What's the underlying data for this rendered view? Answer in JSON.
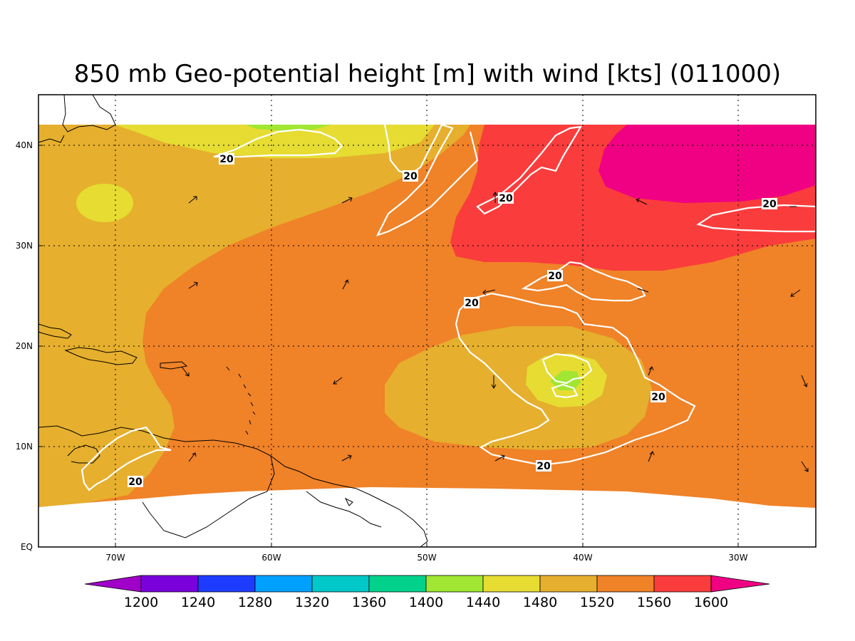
{
  "title": "850 mb Geo-potential height [m] with wind [kts] (011000)",
  "colors": {
    "c1200": "#a000c8",
    "c1240": "#7a00dc",
    "c1280": "#1e3cff",
    "c1320": "#00a0ff",
    "c1360": "#00c8c8",
    "c1400": "#00d28c",
    "c1440": "#a0e632",
    "c1480": "#e6dc32",
    "c1520": "#e6af2d",
    "c1560": "#f08228",
    "c1600": "#fa3c3c",
    "c1640": "#f00082"
  },
  "axes": {
    "x_ticks": [
      "70W",
      "60W",
      "50W",
      "40W",
      "30W"
    ],
    "y_ticks": [
      "EQ",
      "10N",
      "20N",
      "30N",
      "40N"
    ],
    "x_range_deg": [
      -75,
      -25
    ],
    "y_range_deg": [
      0,
      45
    ]
  },
  "colorbar": {
    "labels": [
      "1200",
      "1240",
      "1280",
      "1320",
      "1360",
      "1400",
      "1440",
      "1480",
      "1520",
      "1560",
      "1600"
    ]
  },
  "contour_label": "20",
  "chart_data": {
    "type": "heatmap",
    "title": "850 mb Geo-potential height [m] with wind [kts] (011000)",
    "x_ticks": [
      "70W",
      "60W",
      "50W",
      "40W",
      "30W"
    ],
    "y_ticks": [
      "EQ",
      "10N",
      "20N",
      "30N",
      "40N"
    ],
    "levels": [
      1200,
      1240,
      1280,
      1320,
      1360,
      1400,
      1440,
      1480,
      1520,
      1560,
      1600
    ],
    "contour_levels_kts": [
      20
    ]
  }
}
